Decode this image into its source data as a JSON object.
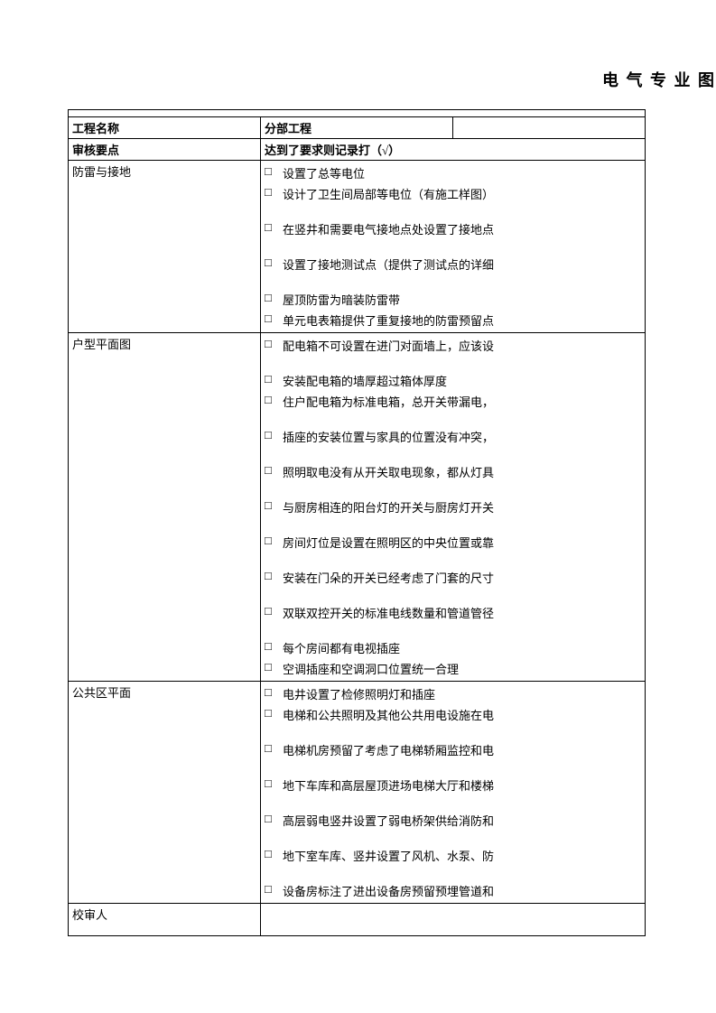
{
  "title": "电 气 专 业 图",
  "header": {
    "project_name_label": "工程名称",
    "sub_project_label": "分部工程",
    "review_points_label": "审核要点",
    "record_label": "达到了要求则记录打（√）"
  },
  "sections": [
    {
      "category": "防雷与接地",
      "items": [
        {
          "text": "设置了总等电位",
          "spaced": false
        },
        {
          "text": "设计了卫生间局部等电位（有施工样图）",
          "spaced": false
        },
        {
          "text": "在竖井和需要电气接地点处设置了接地点",
          "spaced": true
        },
        {
          "text": "设置了接地测试点（提供了测试点的详细",
          "spaced": true
        },
        {
          "text": "屋顶防雷为暗装防雷带",
          "spaced": true
        },
        {
          "text": "单元电表箱提供了重复接地的防雷预留点",
          "spaced": false
        }
      ]
    },
    {
      "category": "户型平面图",
      "items": [
        {
          "text": "配电箱不可设置在进门对面墙上，应该设",
          "spaced": false
        },
        {
          "text": "安装配电箱的墙厚超过箱体厚度",
          "spaced": true
        },
        {
          "text": "住户配电箱为标准电箱，总开关带漏电，",
          "spaced": false
        },
        {
          "text": "插座的安装位置与家具的位置没有冲突，",
          "spaced": true
        },
        {
          "text": "照明取电没有从开关取电现象，都从灯具",
          "spaced": true
        },
        {
          "text": "与厨房相连的阳台灯的开关与厨房灯开关",
          "spaced": true
        },
        {
          "text": "房间灯位是设置在照明区的中央位置或靠",
          "spaced": true
        },
        {
          "text": "安装在门朵的开关已经考虑了门套的尺寸",
          "spaced": true
        },
        {
          "text": "双联双控开关的标准电线数量和管道管径",
          "spaced": true
        },
        {
          "text": "每个房间都有电视插座",
          "spaced": true
        },
        {
          "text": "空调插座和空调洞口位置统一合理",
          "spaced": false
        }
      ]
    },
    {
      "category": "公共区平面",
      "items": [
        {
          "text": "电井设置了检修照明灯和插座",
          "spaced": false
        },
        {
          "text": "电梯和公共照明及其他公共用电设施在电",
          "spaced": false
        },
        {
          "text": "电梯机房预留了考虑了电梯轿厢监控和电",
          "spaced": true
        },
        {
          "text": "地下车库和高层屋顶进场电梯大厅和楼梯",
          "spaced": true
        },
        {
          "text": "高层弱电竖井设置了弱电桥架供给消防和",
          "spaced": true
        },
        {
          "text": "地下室车库、竖井设置了风机、水泵、防",
          "spaced": true
        },
        {
          "text": "设备房标注了进出设备房预留预埋管道和",
          "spaced": true
        }
      ]
    }
  ],
  "footer": {
    "reviewer_label": "校审人"
  },
  "checkbox_symbol": "□"
}
